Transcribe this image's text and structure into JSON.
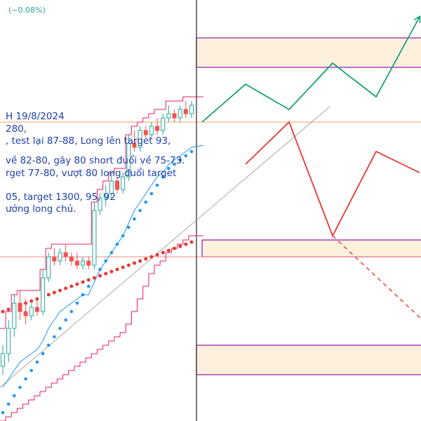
{
  "header": {
    "change": "(−0.08%)",
    "change_color": "#26a69a"
  },
  "annotation_lines": [
    "H 19/8/2024",
    "280,",
    ", test lại 87-88, Long lên target 93,",
    "",
    "về 82-80, gãy 80 short đuổi về 75-73.",
    "rget 77-80, vượt 80 long đuổi target",
    "",
    "05, target 1300, 95, 92",
    "ướng long chủ."
  ],
  "colors": {
    "text_blue": "#1e40af",
    "candle_up": "#26a69a",
    "candle_down": "#ef5350",
    "bb_band": "#e91e63",
    "bb_mid": "#2196f3",
    "dot_blue": "#2196f3",
    "dot_red": "#e53935",
    "zone_fill": "#fdf0dd",
    "zone_border": "#9c27b0",
    "scenario_up": "#1b9e77",
    "scenario_down": "#e53935",
    "level_orange": "#f4a460",
    "level_red": "#f28b82",
    "trendline": "#9e9e9e",
    "divider": "#333333"
  },
  "chart_data": {
    "type": "candlestick",
    "price_range": [
      0,
      100
    ],
    "candles": [
      {
        "o": 13,
        "h": 18,
        "l": 11,
        "c": 16
      },
      {
        "o": 16,
        "h": 24,
        "l": 14,
        "c": 22
      },
      {
        "o": 22,
        "h": 30,
        "l": 20,
        "c": 28
      },
      {
        "o": 28,
        "h": 31,
        "l": 24,
        "c": 26
      },
      {
        "o": 26,
        "h": 29,
        "l": 23,
        "c": 25
      },
      {
        "o": 25,
        "h": 28,
        "l": 24,
        "c": 27
      },
      {
        "o": 27,
        "h": 29,
        "l": 25,
        "c": 26
      },
      {
        "o": 26,
        "h": 36,
        "l": 25,
        "c": 34
      },
      {
        "o": 34,
        "h": 40,
        "l": 33,
        "c": 39
      },
      {
        "o": 39,
        "h": 41,
        "l": 37,
        "c": 38
      },
      {
        "o": 38,
        "h": 41,
        "l": 37,
        "c": 40
      },
      {
        "o": 40,
        "h": 42,
        "l": 38,
        "c": 39
      },
      {
        "o": 39,
        "h": 40,
        "l": 37,
        "c": 38
      },
      {
        "o": 38,
        "h": 40,
        "l": 36,
        "c": 37
      },
      {
        "o": 37,
        "h": 39,
        "l": 36,
        "c": 38
      },
      {
        "o": 38,
        "h": 39,
        "l": 36,
        "c": 37
      },
      {
        "o": 37,
        "h": 52,
        "l": 36,
        "c": 50
      },
      {
        "o": 50,
        "h": 54,
        "l": 49,
        "c": 53
      },
      {
        "o": 53,
        "h": 56,
        "l": 51,
        "c": 54
      },
      {
        "o": 54,
        "h": 59,
        "l": 53,
        "c": 57
      },
      {
        "o": 57,
        "h": 58,
        "l": 54,
        "c": 55
      },
      {
        "o": 55,
        "h": 59,
        "l": 54,
        "c": 58
      },
      {
        "o": 58,
        "h": 68,
        "l": 57,
        "c": 66
      },
      {
        "o": 66,
        "h": 69,
        "l": 64,
        "c": 65
      },
      {
        "o": 65,
        "h": 70,
        "l": 64,
        "c": 69
      },
      {
        "o": 69,
        "h": 70,
        "l": 67,
        "c": 68
      },
      {
        "o": 68,
        "h": 71,
        "l": 67,
        "c": 70
      },
      {
        "o": 70,
        "h": 72,
        "l": 68,
        "c": 69
      },
      {
        "o": 69,
        "h": 73,
        "l": 68,
        "c": 72
      },
      {
        "o": 72,
        "h": 75,
        "l": 71,
        "c": 73
      },
      {
        "o": 73,
        "h": 74,
        "l": 71,
        "c": 72
      },
      {
        "o": 72,
        "h": 75,
        "l": 71,
        "c": 74
      },
      {
        "o": 74,
        "h": 76,
        "l": 72,
        "c": 73
      },
      {
        "o": 73,
        "h": 76,
        "l": 72,
        "c": 75
      }
    ],
    "bb_upper": [
      22,
      26,
      30,
      31,
      31,
      31,
      31,
      36,
      41,
      42,
      42,
      42,
      42,
      42,
      42,
      42,
      52,
      55,
      57,
      59,
      60,
      60,
      68,
      70,
      71,
      72,
      73,
      74,
      74,
      76,
      76,
      76,
      77,
      77
    ],
    "bb_middle": [
      8,
      10,
      12,
      14,
      15,
      16,
      17,
      19,
      22,
      24,
      26,
      27,
      28,
      29,
      30,
      30,
      33,
      36,
      38,
      40,
      42,
      44,
      47,
      50,
      52,
      54,
      56,
      58,
      59,
      61,
      62,
      63,
      64,
      65
    ],
    "bb_lower": [
      0,
      1,
      2,
      3,
      4,
      5,
      6,
      7,
      8,
      9,
      10,
      11,
      12,
      13,
      14,
      15,
      16,
      17,
      18,
      19,
      20,
      21,
      23,
      26,
      29,
      32,
      35,
      37,
      38,
      40,
      41,
      42,
      43,
      44
    ],
    "blue_dots": [
      2,
      4,
      6,
      8,
      10,
      12,
      14,
      16,
      18,
      20,
      22,
      24,
      26,
      28,
      30,
      32,
      34,
      36,
      38,
      40,
      42,
      44,
      46,
      48,
      50,
      52,
      54,
      56,
      58,
      60,
      61,
      62,
      63,
      64
    ],
    "red_dots": [
      26,
      26.5,
      27,
      27.5,
      28,
      28.5,
      29,
      29.5,
      30,
      30.5,
      31,
      31.5,
      32,
      32.5,
      33,
      33.5,
      34,
      34.5,
      35,
      35.5,
      36,
      36.5,
      37,
      37.5,
      38,
      38.5,
      39,
      39.5,
      40,
      40.5,
      41,
      41.5,
      42,
      42.5
    ],
    "levels": [
      {
        "value": 71,
        "color": "level_orange"
      },
      {
        "value": 39,
        "color": "level_red"
      }
    ],
    "zones": [
      {
        "top": 91,
        "bottom": 84
      },
      {
        "top": 43,
        "bottom": 39
      },
      {
        "top": 18,
        "bottom": 11
      }
    ],
    "trendline": {
      "from": [
        0,
        8
      ],
      "to": [
        1,
        82
      ]
    },
    "scenario_up": [
      [
        0,
        71
      ],
      [
        1,
        80
      ],
      [
        2,
        74
      ],
      [
        3,
        85
      ],
      [
        4,
        77
      ],
      [
        5,
        96
      ]
    ],
    "scenario_down": [
      [
        0,
        71
      ],
      [
        1,
        61
      ],
      [
        2,
        71
      ],
      [
        3,
        44
      ],
      [
        4,
        64
      ],
      [
        5,
        59
      ]
    ],
    "scenario_down_dash": [
      [
        3,
        44
      ],
      [
        4,
        26
      ]
    ]
  }
}
